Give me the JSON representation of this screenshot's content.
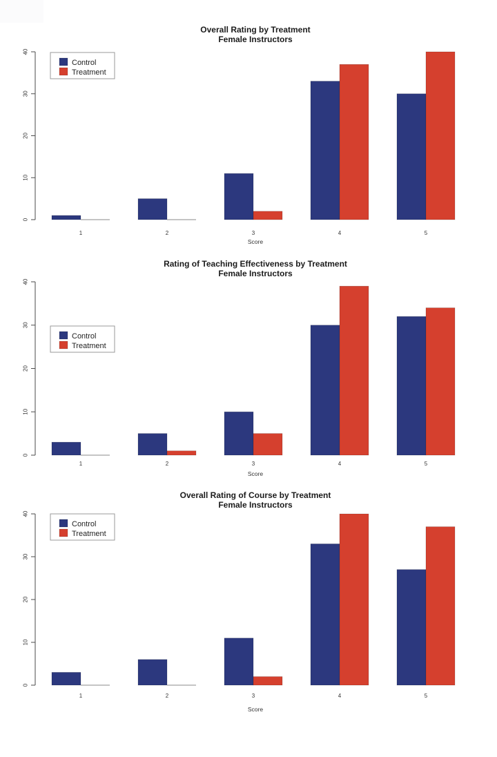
{
  "page": {
    "background_color": "#ffffff"
  },
  "colors": {
    "control_bar": "#2c387e",
    "treatment_bar": "#d5402e",
    "axis_line": "#4a4a4a",
    "tick_label": "#333333",
    "title_text": "#1b1b1b",
    "zero_bar_line": "#8a8a8a",
    "legend_border": "#999999",
    "legend_text": "#222222"
  },
  "chart_data": [
    {
      "type": "bar",
      "title": "Overall Rating by Treatment",
      "subtitle": "Female Instructors",
      "xlabel": "Score",
      "ylabel": "",
      "categories": [
        "1",
        "2",
        "3",
        "4",
        "5"
      ],
      "series": [
        {
          "name": "Control",
          "color": "#2c387e",
          "values": [
            1,
            5,
            11,
            33,
            30
          ]
        },
        {
          "name": "Treatment",
          "color": "#d5402e",
          "values": [
            0,
            0,
            2,
            37,
            40
          ]
        }
      ],
      "ylim": [
        0,
        40
      ],
      "yticks": [
        0,
        10,
        20,
        30,
        40
      ],
      "grid": false,
      "legend_position": "top-left"
    },
    {
      "type": "bar",
      "title": "Rating of Teaching Effectiveness by Treatment",
      "subtitle": "Female Instructors",
      "xlabel": "Score",
      "ylabel": "",
      "categories": [
        "1",
        "2",
        "3",
        "4",
        "5"
      ],
      "series": [
        {
          "name": "Control",
          "color": "#2c387e",
          "values": [
            3,
            5,
            10,
            30,
            32
          ]
        },
        {
          "name": "Treatment",
          "color": "#d5402e",
          "values": [
            0,
            1,
            5,
            39,
            34
          ]
        }
      ],
      "ylim": [
        0,
        40
      ],
      "yticks": [
        0,
        10,
        20,
        30,
        40
      ],
      "grid": false,
      "legend_position": "middle-left"
    },
    {
      "type": "bar",
      "title": "Overall Rating of Course by Treatment",
      "subtitle": "Female Instructors",
      "xlabel": "Score",
      "ylabel": "",
      "categories": [
        "1",
        "2",
        "3",
        "4",
        "5"
      ],
      "series": [
        {
          "name": "Control",
          "color": "#2c387e",
          "values": [
            3,
            6,
            11,
            33,
            27
          ]
        },
        {
          "name": "Treatment",
          "color": "#d5402e",
          "values": [
            0,
            0,
            2,
            40,
            37
          ]
        }
      ],
      "ylim": [
        0,
        40
      ],
      "yticks": [
        0,
        10,
        20,
        30,
        40
      ],
      "grid": false,
      "legend_position": "top-left"
    }
  ]
}
